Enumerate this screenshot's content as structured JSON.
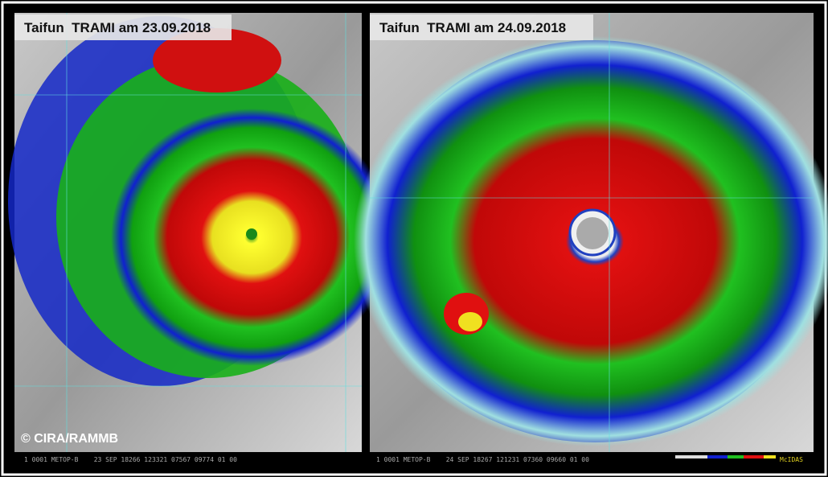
{
  "panels": [
    {
      "title": "Taifun  TRAMI am 23.09.2018",
      "footer": "1 0001 METOP-B    23 SEP 18266 123321 07567 09774 01 00"
    },
    {
      "title": "Taifun  TRAMI am 24.09.2018",
      "footer": "1 0001 METOP-B    24 SEP 18267 121231 07360 09660 01 00",
      "logo": "McIDAS"
    }
  ],
  "credit": "© CIRA/RAMMB"
}
